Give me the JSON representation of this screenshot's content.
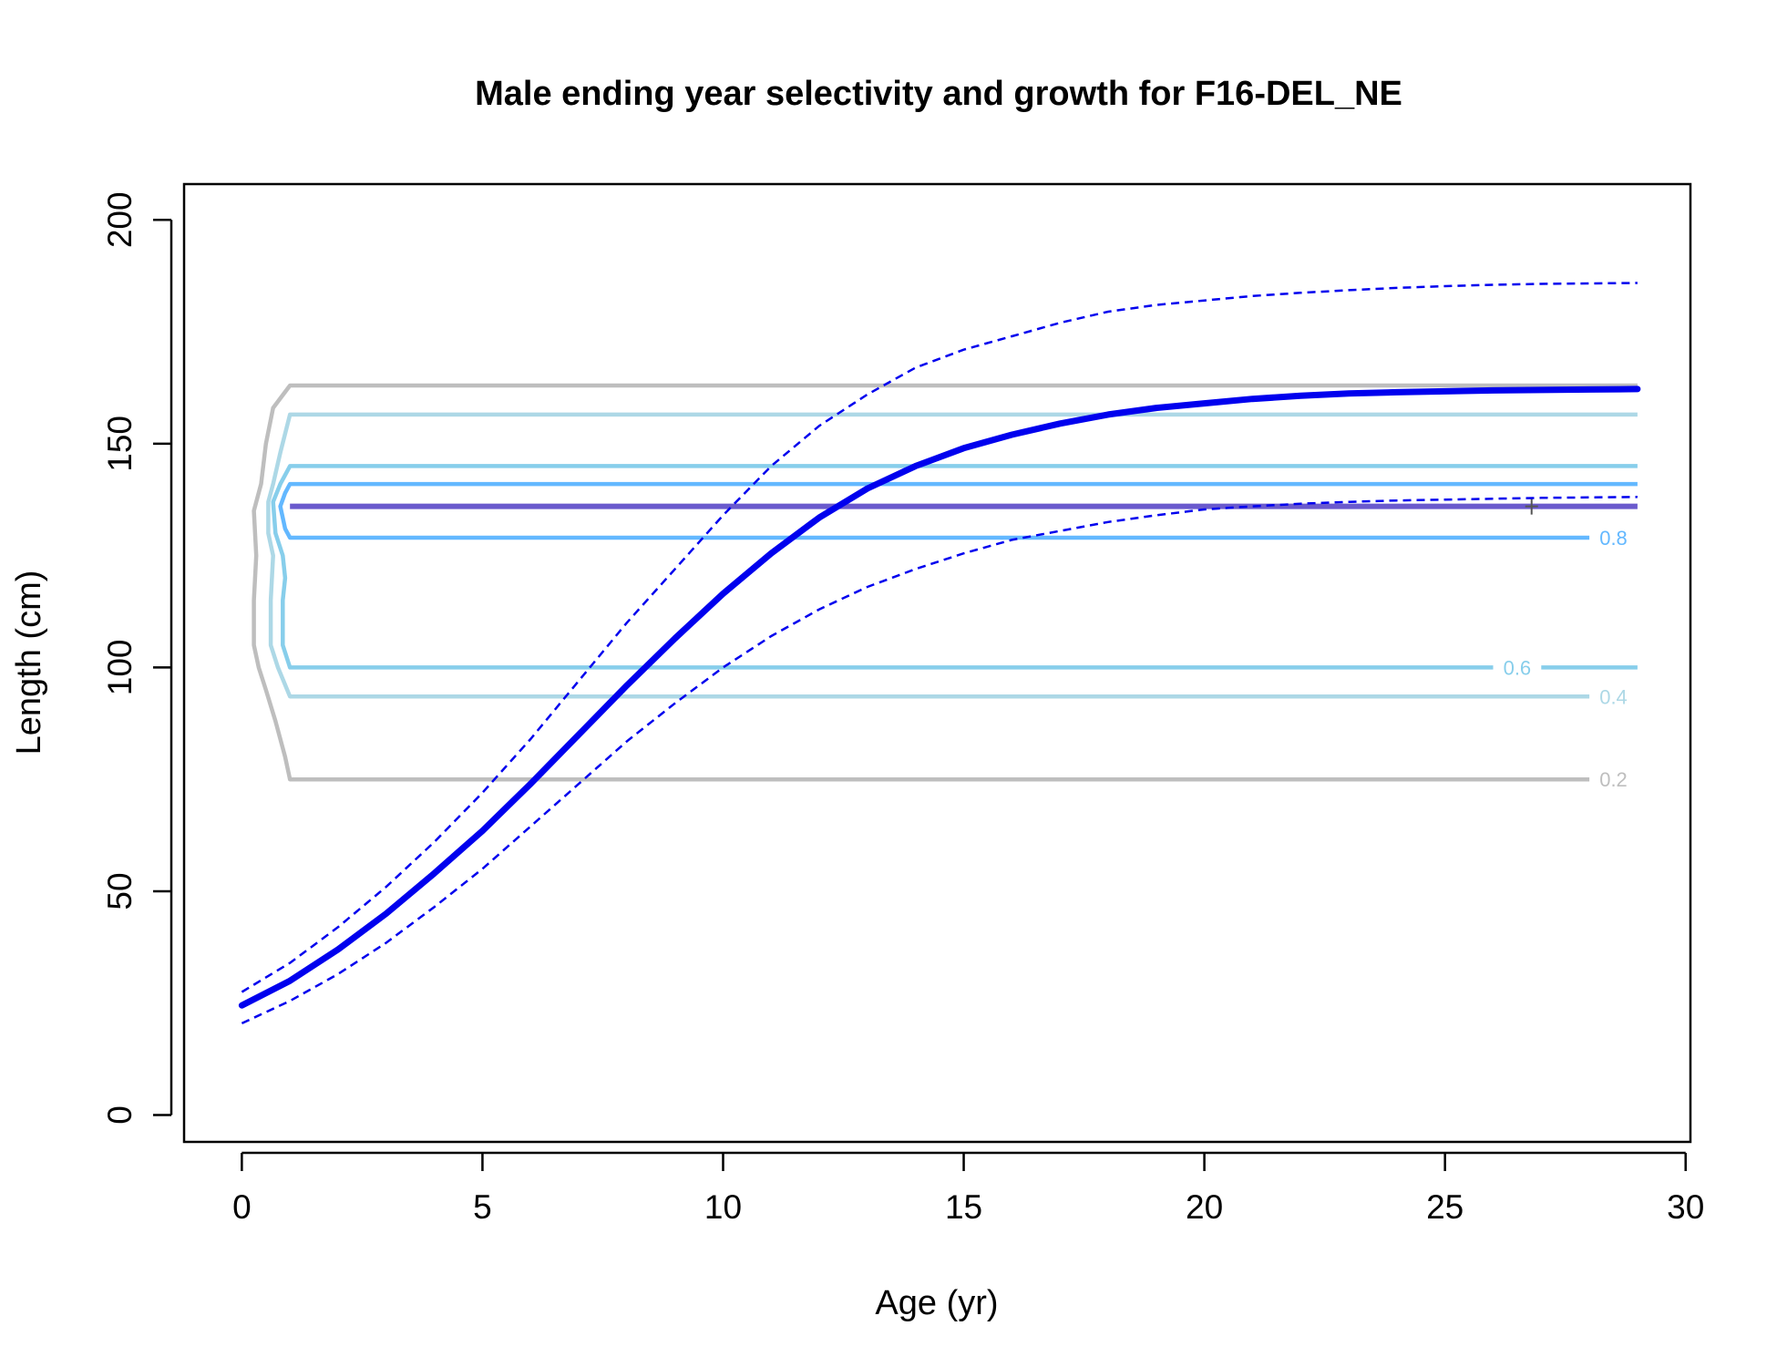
{
  "chart_data": {
    "type": "line",
    "title": "Male ending year selectivity and growth for F16-DEL_NE",
    "xlabel": "Age (yr)",
    "ylabel": "Length (cm)",
    "xlim": [
      -1.2,
      30.1
    ],
    "ylim": [
      -6,
      208
    ],
    "xticks": [
      0,
      5,
      10,
      15,
      20,
      25,
      30
    ],
    "yticks": [
      0,
      50,
      100,
      150,
      200
    ],
    "grid": false,
    "legend": "none",
    "colors": {
      "growth": "#0000ee",
      "level_0_2": "#bebebe",
      "level_0_4": "#add8e6",
      "level_0_6": "#87ceeb",
      "level_0_8": "#63b8ff",
      "peak": "#6a5acd"
    },
    "growth_mean": {
      "x": [
        0,
        1,
        2,
        3,
        4,
        5,
        6,
        7,
        8,
        9,
        10,
        11,
        12,
        13,
        14,
        15,
        16,
        17,
        18,
        19,
        20,
        21,
        22,
        23,
        24,
        25,
        26,
        27,
        28,
        29
      ],
      "y": [
        24.5,
        30,
        37,
        45,
        54,
        63.5,
        74,
        85,
        96,
        106.5,
        116.5,
        125.5,
        133.5,
        140,
        145,
        149,
        152,
        154.5,
        156.5,
        158,
        159,
        160,
        160.7,
        161.2,
        161.5,
        161.7,
        161.9,
        162,
        162.1,
        162.2
      ]
    },
    "growth_upper": {
      "x": [
        0,
        1,
        2,
        3,
        4,
        5,
        6,
        7,
        8,
        9,
        10,
        11,
        12,
        13,
        14,
        15,
        16,
        17,
        18,
        19,
        20,
        21,
        22,
        23,
        24,
        25,
        26,
        27,
        28,
        29
      ],
      "y": [
        27.5,
        34,
        42,
        51,
        61,
        72,
        84,
        97,
        110,
        122,
        134,
        145,
        154,
        161,
        167,
        171,
        174,
        177,
        179.5,
        181,
        182,
        183,
        183.7,
        184.3,
        184.8,
        185.2,
        185.5,
        185.7,
        185.8,
        185.9
      ]
    },
    "growth_lower": {
      "x": [
        0,
        1,
        2,
        3,
        4,
        5,
        6,
        7,
        8,
        9,
        10,
        11,
        12,
        13,
        14,
        15,
        16,
        17,
        18,
        19,
        20,
        21,
        22,
        23,
        24,
        25,
        26,
        27,
        28,
        29
      ],
      "y": [
        20.5,
        25.5,
        31.5,
        38.5,
        46.5,
        55,
        64.5,
        74,
        83.5,
        92,
        100,
        107,
        113,
        118,
        122,
        125.5,
        128.5,
        130.5,
        132.5,
        134,
        135.3,
        136,
        136.6,
        137,
        137.3,
        137.5,
        137.7,
        137.9,
        138,
        138.1
      ]
    },
    "contours": [
      {
        "level": "0.2",
        "outline": [
          [
            28,
            75
          ],
          [
            1,
            75
          ],
          [
            0.9,
            80
          ],
          [
            0.7,
            88
          ],
          [
            0.5,
            95
          ],
          [
            0.35,
            100
          ],
          [
            0.25,
            105
          ],
          [
            0.25,
            115
          ],
          [
            0.3,
            125
          ],
          [
            0.25,
            135
          ],
          [
            0.4,
            141
          ],
          [
            0.5,
            150
          ],
          [
            0.65,
            158
          ],
          [
            1,
            163
          ],
          [
            29,
            163
          ]
        ],
        "label_at": [
          28.5,
          75
        ]
      },
      {
        "level": "0.4",
        "outline": [
          [
            28,
            93.5
          ],
          [
            1,
            93.5
          ],
          [
            0.75,
            100
          ],
          [
            0.6,
            105
          ],
          [
            0.6,
            115
          ],
          [
            0.65,
            125
          ],
          [
            0.55,
            130
          ],
          [
            0.55,
            137
          ],
          [
            0.65,
            141
          ],
          [
            0.8,
            148
          ],
          [
            1,
            156.5
          ],
          [
            29,
            156.5
          ]
        ],
        "label_at": [
          28.5,
          93.5
        ]
      },
      {
        "level": "0.6",
        "outline": [
          [
            26,
            100
          ],
          [
            1,
            100
          ],
          [
            0.85,
            105
          ],
          [
            0.85,
            115
          ],
          [
            0.9,
            120
          ],
          [
            0.85,
            125
          ],
          [
            0.7,
            130
          ],
          [
            0.65,
            137
          ],
          [
            0.8,
            141
          ],
          [
            1,
            145
          ],
          [
            29,
            145
          ]
        ],
        "label_at": [
          26.5,
          100
        ],
        "extra_segment": [
          [
            27,
            100
          ],
          [
            29,
            100
          ]
        ]
      },
      {
        "level": "0.8",
        "outline": [
          [
            28,
            129
          ],
          [
            1,
            129
          ],
          [
            0.9,
            131
          ],
          [
            0.8,
            136
          ],
          [
            0.9,
            139
          ],
          [
            1,
            141
          ],
          [
            29,
            141
          ]
        ],
        "label_at": [
          28.5,
          129
        ]
      }
    ],
    "peak_line": {
      "x": [
        1,
        29
      ],
      "y": [
        136,
        136
      ],
      "marker": "+",
      "marker_at": [
        26.8,
        136
      ]
    }
  }
}
